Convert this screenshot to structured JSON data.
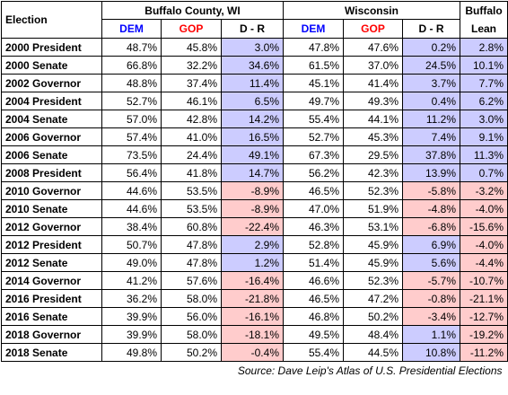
{
  "headers": {
    "election": "Election",
    "county": "Buffalo County, WI",
    "state": "Wisconsin",
    "lean_line1": "Buffalo",
    "lean_line2": "Lean",
    "dem": "DEM",
    "gop": "GOP",
    "dr": "D - R"
  },
  "colors": {
    "dem_text": "#0000ff",
    "gop_text": "#ff0000",
    "positive_fill": "#ccccff",
    "negative_fill": "#ffcccc"
  },
  "rows": [
    {
      "election": "2000 President",
      "c_dem": "48.7%",
      "c_gop": "45.8%",
      "c_dr": "3.0%",
      "s_dem": "47.8%",
      "s_gop": "47.6%",
      "s_dr": "0.2%",
      "lean": "2.8%",
      "c_sign": "pos",
      "s_sign": "pos",
      "l_sign": "pos"
    },
    {
      "election": "2000 Senate",
      "c_dem": "66.8%",
      "c_gop": "32.2%",
      "c_dr": "34.6%",
      "s_dem": "61.5%",
      "s_gop": "37.0%",
      "s_dr": "24.5%",
      "lean": "10.1%",
      "c_sign": "pos",
      "s_sign": "pos",
      "l_sign": "pos"
    },
    {
      "election": "2002 Governor",
      "c_dem": "48.8%",
      "c_gop": "37.4%",
      "c_dr": "11.4%",
      "s_dem": "45.1%",
      "s_gop": "41.4%",
      "s_dr": "3.7%",
      "lean": "7.7%",
      "c_sign": "pos",
      "s_sign": "pos",
      "l_sign": "pos"
    },
    {
      "election": "2004 President",
      "c_dem": "52.7%",
      "c_gop": "46.1%",
      "c_dr": "6.5%",
      "s_dem": "49.7%",
      "s_gop": "49.3%",
      "s_dr": "0.4%",
      "lean": "6.2%",
      "c_sign": "pos",
      "s_sign": "pos",
      "l_sign": "pos"
    },
    {
      "election": "2004 Senate",
      "c_dem": "57.0%",
      "c_gop": "42.8%",
      "c_dr": "14.2%",
      "s_dem": "55.4%",
      "s_gop": "44.1%",
      "s_dr": "11.2%",
      "lean": "3.0%",
      "c_sign": "pos",
      "s_sign": "pos",
      "l_sign": "pos"
    },
    {
      "election": "2006 Governor",
      "c_dem": "57.4%",
      "c_gop": "41.0%",
      "c_dr": "16.5%",
      "s_dem": "52.7%",
      "s_gop": "45.3%",
      "s_dr": "7.4%",
      "lean": "9.1%",
      "c_sign": "pos",
      "s_sign": "pos",
      "l_sign": "pos"
    },
    {
      "election": "2006 Senate",
      "c_dem": "73.5%",
      "c_gop": "24.4%",
      "c_dr": "49.1%",
      "s_dem": "67.3%",
      "s_gop": "29.5%",
      "s_dr": "37.8%",
      "lean": "11.3%",
      "c_sign": "pos",
      "s_sign": "pos",
      "l_sign": "pos"
    },
    {
      "election": "2008 President",
      "c_dem": "56.4%",
      "c_gop": "41.8%",
      "c_dr": "14.7%",
      "s_dem": "56.2%",
      "s_gop": "42.3%",
      "s_dr": "13.9%",
      "lean": "0.7%",
      "c_sign": "pos",
      "s_sign": "pos",
      "l_sign": "pos"
    },
    {
      "election": "2010 Governor",
      "c_dem": "44.6%",
      "c_gop": "53.5%",
      "c_dr": "-8.9%",
      "s_dem": "46.5%",
      "s_gop": "52.3%",
      "s_dr": "-5.8%",
      "lean": "-3.2%",
      "c_sign": "neg",
      "s_sign": "neg",
      "l_sign": "neg"
    },
    {
      "election": "2010 Senate",
      "c_dem": "44.6%",
      "c_gop": "53.5%",
      "c_dr": "-8.9%",
      "s_dem": "47.0%",
      "s_gop": "51.9%",
      "s_dr": "-4.8%",
      "lean": "-4.0%",
      "c_sign": "neg",
      "s_sign": "neg",
      "l_sign": "neg"
    },
    {
      "election": "2012 Governor",
      "c_dem": "38.4%",
      "c_gop": "60.8%",
      "c_dr": "-22.4%",
      "s_dem": "46.3%",
      "s_gop": "53.1%",
      "s_dr": "-6.8%",
      "lean": "-15.6%",
      "c_sign": "neg",
      "s_sign": "neg",
      "l_sign": "neg"
    },
    {
      "election": "2012 President",
      "c_dem": "50.7%",
      "c_gop": "47.8%",
      "c_dr": "2.9%",
      "s_dem": "52.8%",
      "s_gop": "45.9%",
      "s_dr": "6.9%",
      "lean": "-4.0%",
      "c_sign": "pos",
      "s_sign": "pos",
      "l_sign": "neg"
    },
    {
      "election": "2012 Senate",
      "c_dem": "49.0%",
      "c_gop": "47.8%",
      "c_dr": "1.2%",
      "s_dem": "51.4%",
      "s_gop": "45.9%",
      "s_dr": "5.6%",
      "lean": "-4.4%",
      "c_sign": "pos",
      "s_sign": "pos",
      "l_sign": "neg"
    },
    {
      "election": "2014 Governor",
      "c_dem": "41.2%",
      "c_gop": "57.6%",
      "c_dr": "-16.4%",
      "s_dem": "46.6%",
      "s_gop": "52.3%",
      "s_dr": "-5.7%",
      "lean": "-10.7%",
      "c_sign": "neg",
      "s_sign": "neg",
      "l_sign": "neg"
    },
    {
      "election": "2016 President",
      "c_dem": "36.2%",
      "c_gop": "58.0%",
      "c_dr": "-21.8%",
      "s_dem": "46.5%",
      "s_gop": "47.2%",
      "s_dr": "-0.8%",
      "lean": "-21.1%",
      "c_sign": "neg",
      "s_sign": "neg",
      "l_sign": "neg"
    },
    {
      "election": "2016 Senate",
      "c_dem": "39.9%",
      "c_gop": "56.0%",
      "c_dr": "-16.1%",
      "s_dem": "46.8%",
      "s_gop": "50.2%",
      "s_dr": "-3.4%",
      "lean": "-12.7%",
      "c_sign": "neg",
      "s_sign": "neg",
      "l_sign": "neg"
    },
    {
      "election": "2018 Governor",
      "c_dem": "39.9%",
      "c_gop": "58.0%",
      "c_dr": "-18.1%",
      "s_dem": "49.5%",
      "s_gop": "48.4%",
      "s_dr": "1.1%",
      "lean": "-19.2%",
      "c_sign": "neg",
      "s_sign": "pos",
      "l_sign": "neg"
    },
    {
      "election": "2018 Senate",
      "c_dem": "49.8%",
      "c_gop": "50.2%",
      "c_dr": "-0.4%",
      "s_dem": "55.4%",
      "s_gop": "44.5%",
      "s_dr": "10.8%",
      "lean": "-11.2%",
      "c_sign": "neg",
      "s_sign": "pos",
      "l_sign": "neg"
    }
  ],
  "source": "Source: Dave Leip's Atlas of U.S. Presidential Elections"
}
